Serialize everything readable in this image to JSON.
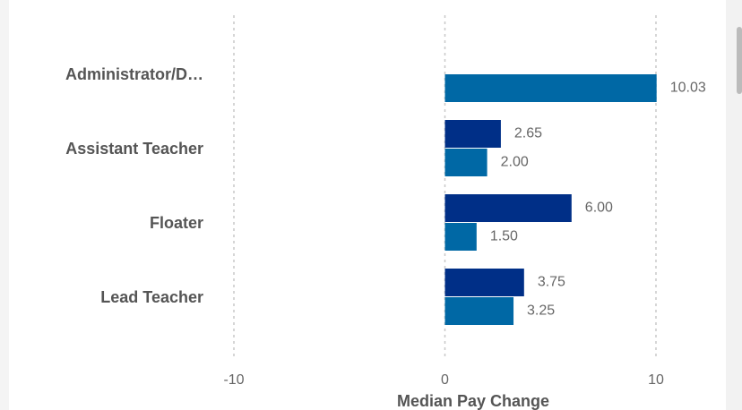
{
  "chart_data": {
    "type": "bar",
    "orientation": "horizontal",
    "categories": [
      "Administrator/D…",
      "Assistant Teacher",
      "Floater",
      "Lead Teacher"
    ],
    "series": [
      {
        "color": "#002f87",
        "values": [
          null,
          2.65,
          6,
          3.75
        ],
        "value_labels": [
          null,
          "2.65",
          "6.00",
          "3.75"
        ]
      },
      {
        "color": "#0068a5",
        "values": [
          10.03,
          2,
          1.5,
          3.25
        ],
        "value_labels": [
          "10.03",
          "2.00",
          "1.50",
          "3.25"
        ]
      }
    ],
    "xlabel": "Median Pay Change",
    "xlim": [
      -10,
      10
    ],
    "xticks": [
      -10,
      0,
      10
    ],
    "grid": true
  }
}
